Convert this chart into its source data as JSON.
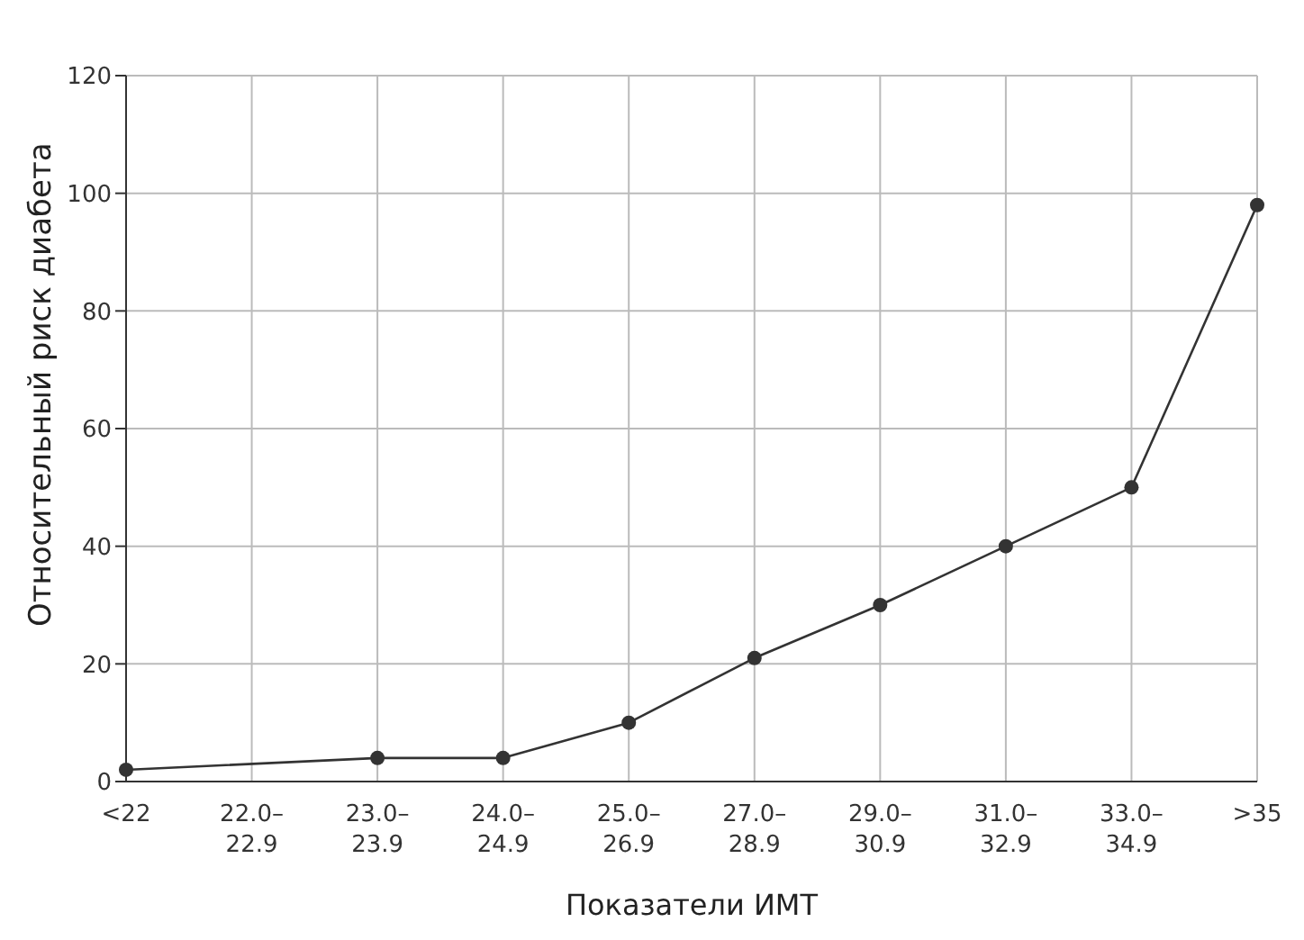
{
  "chart_data": {
    "type": "line",
    "xlabel": "Показатели ИМТ",
    "ylabel": "Относительный риск диабета",
    "categories": [
      "<22",
      "22.0–22.9",
      "23.0–23.9",
      "24.0–24.9",
      "25.0–26.9",
      "27.0–28.9",
      "29.0–30.9",
      "31.0–32.9",
      "33.0–34.9",
      ">35"
    ],
    "series": [
      {
        "color": "#333333",
        "values": [
          2,
          null,
          4,
          4,
          10,
          21,
          30,
          40,
          50,
          98
        ]
      }
    ],
    "ylim": [
      0,
      120
    ],
    "yticks": [
      0,
      20,
      40,
      60,
      80,
      100,
      120
    ],
    "grid": true,
    "marker": "circle",
    "line_style": "solid"
  }
}
